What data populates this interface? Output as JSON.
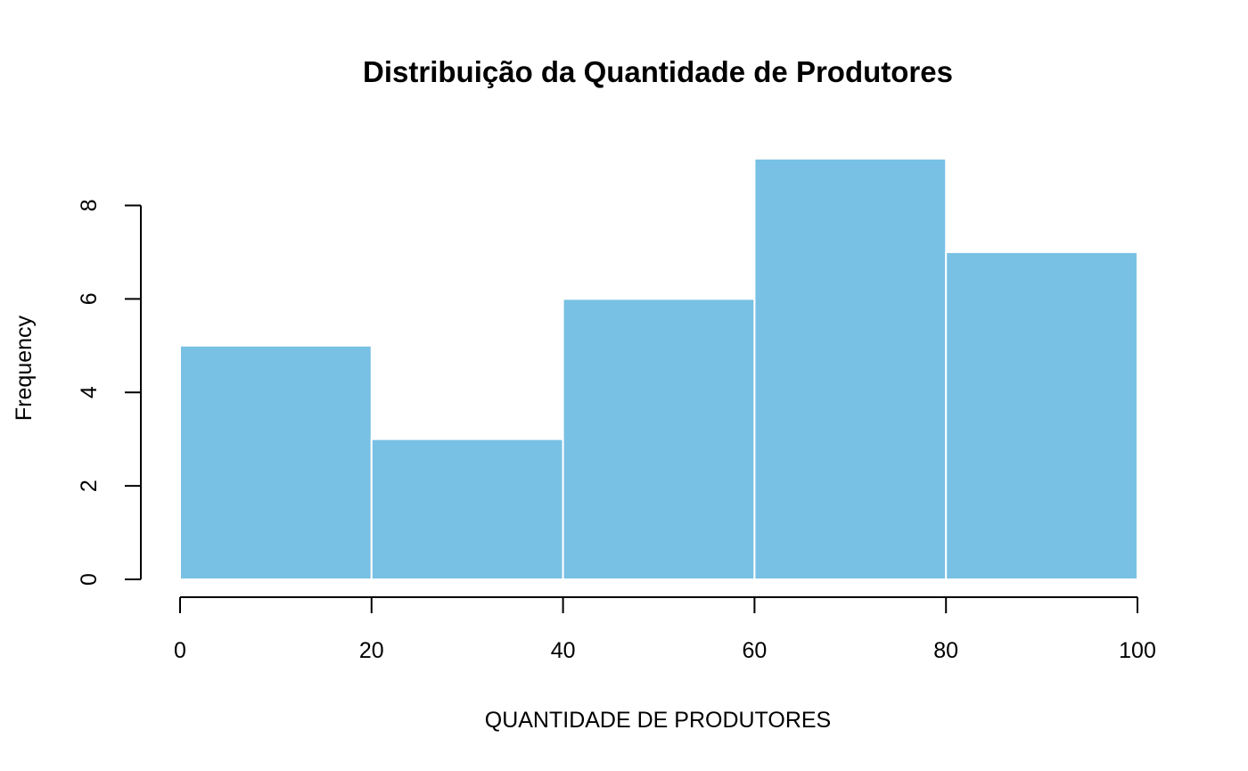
{
  "chart_data": {
    "type": "bar",
    "title": "Distribuição da Quantidade de Produtores",
    "xlabel": "QUANTIDADE DE PRODUTORES",
    "ylabel": "Frequency",
    "bins": [
      {
        "start": 0,
        "end": 20,
        "count": 5
      },
      {
        "start": 20,
        "end": 40,
        "count": 3
      },
      {
        "start": 40,
        "end": 60,
        "count": 6
      },
      {
        "start": 60,
        "end": 80,
        "count": 9
      },
      {
        "start": 80,
        "end": 100,
        "count": 7
      }
    ],
    "xlim": [
      0,
      100
    ],
    "ylim": [
      0,
      9
    ],
    "x_ticks": [
      0,
      20,
      40,
      60,
      80,
      100
    ],
    "y_ticks": [
      0,
      2,
      4,
      6,
      8
    ],
    "x_tick_labels": [
      "0",
      "20",
      "40",
      "60",
      "80",
      "100"
    ],
    "y_tick_labels": [
      "0",
      "2",
      "4",
      "6",
      "8"
    ],
    "bar_color": "#78c1e4",
    "bar_border_color": "#ffffff",
    "grid": false,
    "legend": "none"
  }
}
